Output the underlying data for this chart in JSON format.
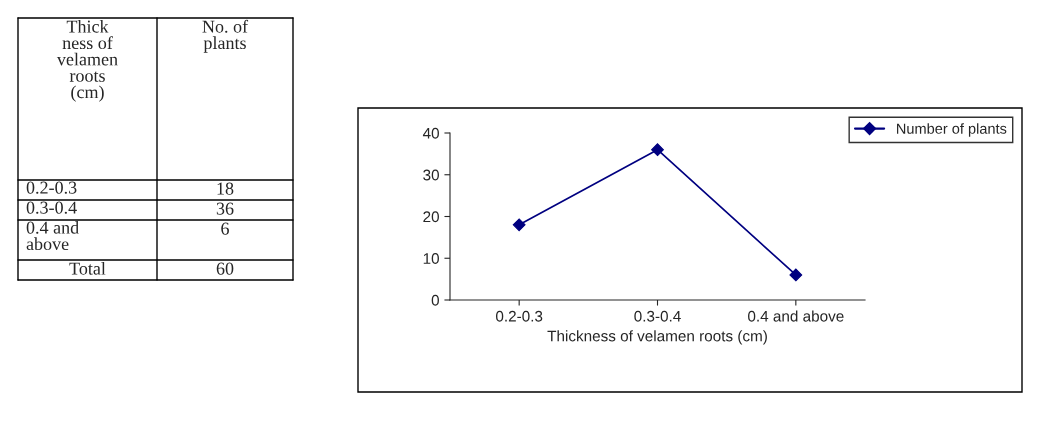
{
  "chart_data": {
    "type": "line",
    "xlabel": "Thickness of velamen roots (cm)",
    "categories": [
      "0.2-0.3",
      "0.3-0.4",
      "0.4 and above"
    ],
    "series": [
      {
        "name": "Number of plants",
        "color": "#000080",
        "values": [
          18,
          36,
          6
        ]
      }
    ],
    "ylim": [
      0,
      40
    ],
    "yticks": [
      0,
      10,
      20,
      30,
      40
    ],
    "grid": false,
    "legend": "top right",
    "marker": "diamond",
    "line_style": "solid",
    "annotations": [
      "Thick ness of velamen roots (cm)",
      "No. of plants",
      "0.2-0.3",
      "18",
      "0.3-0.4",
      "36",
      "0.4 and above",
      "6",
      "Total",
      "60"
    ]
  }
}
